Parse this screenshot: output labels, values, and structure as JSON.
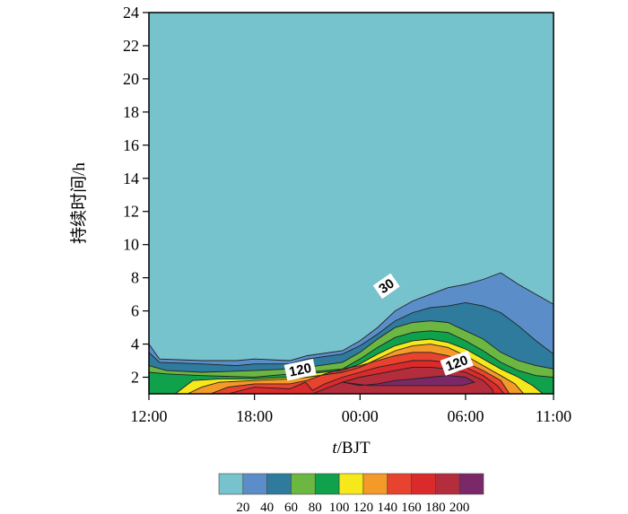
{
  "chart_data": {
    "type": "heatmap",
    "subtype": "filled-contour",
    "title": "",
    "xlabel": "t/BJT",
    "ylabel": "持续时间/h",
    "x_ticks": [
      "12:00",
      "18:00",
      "00:00",
      "06:00",
      "11:00"
    ],
    "x_tick_hours": [
      0,
      6,
      12,
      18,
      23
    ],
    "xlim_hours": [
      0,
      23
    ],
    "y_ticks": [
      2,
      4,
      6,
      8,
      10,
      12,
      14,
      16,
      18,
      20,
      22,
      24
    ],
    "ylim": [
      1,
      24
    ],
    "grid": false,
    "levels": [
      20,
      40,
      60,
      80,
      100,
      120,
      140,
      160,
      180,
      200
    ],
    "colors": [
      "#76c2cd",
      "#5b8ec9",
      "#2e7b9e",
      "#6cb642",
      "#0fa14b",
      "#f7e81c",
      "#f39a29",
      "#e8432e",
      "#da2a2c",
      "#b32d3c",
      "#7a2868"
    ],
    "contour_labels": [
      "30",
      "120",
      "120"
    ],
    "colorbar_labels": [
      "20",
      "40",
      "60",
      "80",
      "100",
      "120",
      "140",
      "160",
      "180",
      "200"
    ],
    "colorbar_position": "bottom",
    "regions": [
      {
        "level_min": 20,
        "boundary": [
          [
            0,
            4
          ],
          [
            0.6,
            3.1
          ],
          [
            3,
            3
          ],
          [
            5,
            3
          ],
          [
            6,
            3.1
          ],
          [
            8,
            3
          ],
          [
            9,
            3.3
          ],
          [
            11,
            3.6
          ],
          [
            12,
            4.2
          ],
          [
            13,
            5
          ],
          [
            14,
            6
          ],
          [
            15,
            6.6
          ],
          [
            16,
            7
          ],
          [
            17,
            7.4
          ],
          [
            18,
            7.6
          ],
          [
            19,
            7.9
          ],
          [
            20,
            8.3
          ],
          [
            21,
            7.6
          ],
          [
            22,
            7
          ],
          [
            23,
            6.4
          ],
          [
            23,
            1
          ],
          [
            0,
            1
          ]
        ]
      },
      {
        "level_min": 40,
        "boundary": [
          [
            0,
            3.5
          ],
          [
            0.6,
            2.9
          ],
          [
            3,
            2.8
          ],
          [
            5,
            2.7
          ],
          [
            6,
            2.8
          ],
          [
            8,
            2.8
          ],
          [
            9,
            3.1
          ],
          [
            11,
            3.4
          ],
          [
            12,
            3.9
          ],
          [
            13,
            4.6
          ],
          [
            14,
            5.4
          ],
          [
            15,
            5.9
          ],
          [
            16,
            6.2
          ],
          [
            17,
            6.3
          ],
          [
            18,
            6.5
          ],
          [
            19,
            6.3
          ],
          [
            20,
            5.9
          ],
          [
            21,
            5.1
          ],
          [
            22,
            4.2
          ],
          [
            23,
            3.4
          ],
          [
            23,
            1
          ],
          [
            0,
            1
          ]
        ]
      },
      {
        "level_min": 60,
        "boundary": [
          [
            0,
            2.7
          ],
          [
            1,
            2.4
          ],
          [
            3,
            2.3
          ],
          [
            6,
            2.4
          ],
          [
            8,
            2.5
          ],
          [
            9,
            2.6
          ],
          [
            11,
            2.9
          ],
          [
            12,
            3.5
          ],
          [
            13,
            4.3
          ],
          [
            14,
            5
          ],
          [
            15,
            5.3
          ],
          [
            16,
            5.4
          ],
          [
            17,
            5.3
          ],
          [
            18,
            4.8
          ],
          [
            19,
            4.3
          ],
          [
            20,
            3.5
          ],
          [
            21,
            3
          ],
          [
            22,
            2.7
          ],
          [
            23,
            2.5
          ],
          [
            23,
            1
          ],
          [
            0,
            1
          ]
        ]
      },
      {
        "level_min": 80,
        "boundary": [
          [
            0,
            2.3
          ],
          [
            1,
            2.2
          ],
          [
            3,
            2.1
          ],
          [
            6,
            2
          ],
          [
            8,
            2.2
          ],
          [
            9,
            2.3
          ],
          [
            11,
            2.5
          ],
          [
            12,
            3.1
          ],
          [
            13,
            3.8
          ],
          [
            14,
            4.4
          ],
          [
            15,
            4.7
          ],
          [
            16,
            4.8
          ],
          [
            17,
            4.7
          ],
          [
            18,
            4.2
          ],
          [
            19,
            3.6
          ],
          [
            20,
            2.9
          ],
          [
            21,
            2.4
          ],
          [
            22,
            2.1
          ],
          [
            23,
            2
          ],
          [
            23,
            1
          ],
          [
            0,
            1
          ]
        ]
      },
      {
        "level_min": 100,
        "boundary": [
          [
            1.5,
            1
          ],
          [
            2.5,
            1.8
          ],
          [
            4,
            1.9
          ],
          [
            6,
            1.9
          ],
          [
            8,
            2
          ],
          [
            9,
            2.2
          ],
          [
            11,
            2.4
          ],
          [
            12,
            2.8
          ],
          [
            13,
            3.4
          ],
          [
            14,
            3.9
          ],
          [
            15,
            4.2
          ],
          [
            16,
            4.3
          ],
          [
            17,
            4.1
          ],
          [
            18,
            3.7
          ],
          [
            19,
            3.1
          ],
          [
            20,
            2.5
          ],
          [
            21,
            2
          ],
          [
            21.8,
            1.5
          ],
          [
            22.4,
            1
          ]
        ]
      },
      {
        "level_min": 120,
        "boundary": [
          [
            2.2,
            1
          ],
          [
            3,
            1.4
          ],
          [
            4,
            1.7
          ],
          [
            6,
            1.8
          ],
          [
            8,
            1.9
          ],
          [
            9,
            2
          ],
          [
            11,
            2.3
          ],
          [
            12,
            2.6
          ],
          [
            13,
            3.1
          ],
          [
            14,
            3.6
          ],
          [
            15,
            3.9
          ],
          [
            16,
            4
          ],
          [
            17,
            3.8
          ],
          [
            18,
            3.3
          ],
          [
            19,
            2.7
          ],
          [
            20,
            2.1
          ],
          [
            20.8,
            1.6
          ],
          [
            21.3,
            1
          ]
        ]
      },
      {
        "level_min": 140,
        "boundary": [
          [
            3.5,
            1
          ],
          [
            4.5,
            1.4
          ],
          [
            6,
            1.6
          ],
          [
            8,
            1.6
          ],
          [
            9,
            1.8
          ],
          [
            10,
            2.2
          ],
          [
            11,
            2.5
          ],
          [
            12,
            2.7
          ],
          [
            13,
            3
          ],
          [
            14,
            3.3
          ],
          [
            15,
            3.5
          ],
          [
            16,
            3.5
          ],
          [
            17,
            3.3
          ],
          [
            18,
            2.9
          ],
          [
            19,
            2.4
          ],
          [
            20,
            1.8
          ],
          [
            20.5,
            1
          ]
        ]
      },
      {
        "level_min": 160,
        "boundary": [
          [
            4.5,
            1
          ],
          [
            6,
            1.4
          ],
          [
            8,
            1.3
          ],
          [
            8.9,
            1.7
          ],
          [
            9.3,
            1.2
          ],
          [
            10,
            1.6
          ],
          [
            11,
            2
          ],
          [
            12,
            2.3
          ],
          [
            13,
            2.6
          ],
          [
            14,
            2.8
          ],
          [
            15,
            3
          ],
          [
            16,
            3
          ],
          [
            17,
            2.9
          ],
          [
            18,
            2.6
          ],
          [
            19,
            2.1
          ],
          [
            19.8,
            1.5
          ],
          [
            20.2,
            1
          ]
        ]
      },
      {
        "level_min": 180,
        "boundary": [
          [
            9.3,
            1
          ],
          [
            10,
            1.3
          ],
          [
            11,
            1.7
          ],
          [
            12,
            2
          ],
          [
            13,
            2.2
          ],
          [
            14,
            2.4
          ],
          [
            15,
            2.6
          ],
          [
            16,
            2.6
          ],
          [
            17,
            2.5
          ],
          [
            18,
            2.3
          ],
          [
            19,
            1.8
          ],
          [
            19.5,
            1.3
          ],
          [
            19.6,
            1
          ]
        ]
      },
      {
        "level_min": 200,
        "boundary": [
          [
            11,
            1.7
          ],
          [
            12,
            1.5
          ],
          [
            13,
            1.6
          ],
          [
            14,
            1.8
          ],
          [
            15,
            1.9
          ],
          [
            16,
            2
          ],
          [
            17,
            2.1
          ],
          [
            18,
            2
          ],
          [
            18.5,
            1.7
          ],
          [
            17.8,
            1.5
          ],
          [
            16,
            1.5
          ],
          [
            14,
            1.5
          ],
          [
            12.5,
            1.5
          ]
        ]
      }
    ]
  }
}
